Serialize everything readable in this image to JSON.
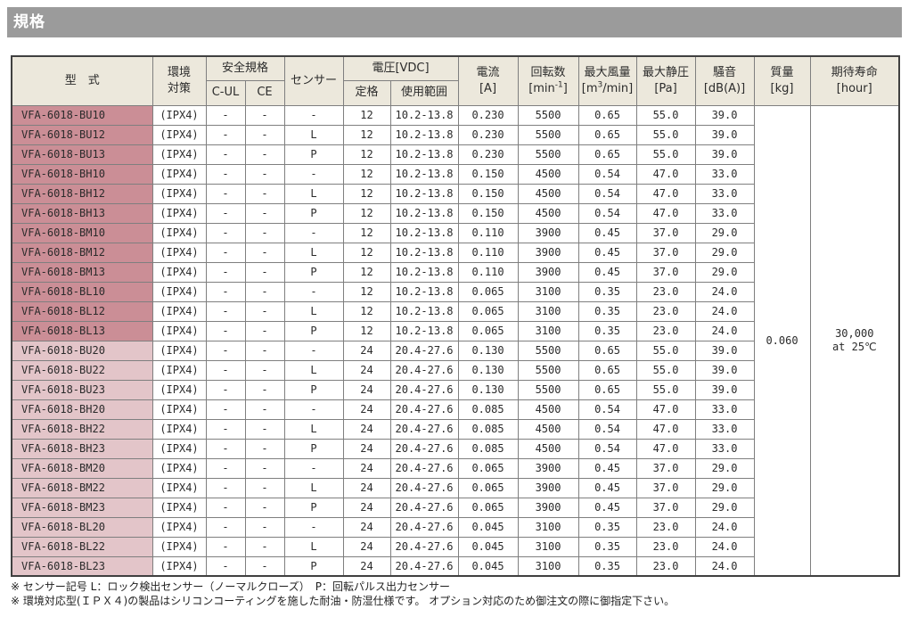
{
  "page_title": "規格",
  "colors": {
    "title_bar": "#9b9b9b",
    "header_bg": "#ece8dc",
    "row_shade_dark": "#cb8e96",
    "row_shade_light": "#e3c5c9"
  },
  "table": {
    "headers": {
      "model": "型　式",
      "env_l1": "環境",
      "env_l2": "対策",
      "safety": "安全規格",
      "cul": "C-UL",
      "ce": "CE",
      "sensor": "センサー",
      "voltage": "電圧[VDC]",
      "rated": "定格",
      "range": "使用範囲",
      "current_l1": "電流",
      "current_l2": "[A]",
      "speed_l1": "回転数",
      "speed_unit_pre": "[min",
      "speed_sup": "-1",
      "speed_unit_post": "]",
      "airflow_l1": "最大風量",
      "airflow_unit_pre": "[m",
      "airflow_sup": "3",
      "airflow_unit_post": "/min]",
      "pressure_l1": "最大静圧",
      "pressure_l2": "[Pa]",
      "noise_l1": "騒音",
      "noise_l2": "[dB(A)]",
      "mass_l1": "質量",
      "mass_l2": "[kg]",
      "life_l1": "期待寿命",
      "life_l2": "[hour]"
    },
    "mass_value": "0.060",
    "life_value_l1": "30,000",
    "life_value_l2": "at 25℃",
    "rows": [
      {
        "model": "VFA-6018-BU10",
        "env": "(IPX4)",
        "cul": "-",
        "ce": "-",
        "sensor": "-",
        "rated": "12",
        "range": "10.2-13.8",
        "current": "0.230",
        "speed": "5500",
        "airflow": "0.65",
        "pressure": "55.0",
        "noise": "39.0",
        "shade": "dark"
      },
      {
        "model": "VFA-6018-BU12",
        "env": "(IPX4)",
        "cul": "-",
        "ce": "-",
        "sensor": "L",
        "rated": "12",
        "range": "10.2-13.8",
        "current": "0.230",
        "speed": "5500",
        "airflow": "0.65",
        "pressure": "55.0",
        "noise": "39.0",
        "shade": "dark"
      },
      {
        "model": "VFA-6018-BU13",
        "env": "(IPX4)",
        "cul": "-",
        "ce": "-",
        "sensor": "P",
        "rated": "12",
        "range": "10.2-13.8",
        "current": "0.230",
        "speed": "5500",
        "airflow": "0.65",
        "pressure": "55.0",
        "noise": "39.0",
        "shade": "dark"
      },
      {
        "model": "VFA-6018-BH10",
        "env": "(IPX4)",
        "cul": "-",
        "ce": "-",
        "sensor": "-",
        "rated": "12",
        "range": "10.2-13.8",
        "current": "0.150",
        "speed": "4500",
        "airflow": "0.54",
        "pressure": "47.0",
        "noise": "33.0",
        "shade": "dark"
      },
      {
        "model": "VFA-6018-BH12",
        "env": "(IPX4)",
        "cul": "-",
        "ce": "-",
        "sensor": "L",
        "rated": "12",
        "range": "10.2-13.8",
        "current": "0.150",
        "speed": "4500",
        "airflow": "0.54",
        "pressure": "47.0",
        "noise": "33.0",
        "shade": "dark"
      },
      {
        "model": "VFA-6018-BH13",
        "env": "(IPX4)",
        "cul": "-",
        "ce": "-",
        "sensor": "P",
        "rated": "12",
        "range": "10.2-13.8",
        "current": "0.150",
        "speed": "4500",
        "airflow": "0.54",
        "pressure": "47.0",
        "noise": "33.0",
        "shade": "dark"
      },
      {
        "model": "VFA-6018-BM10",
        "env": "(IPX4)",
        "cul": "-",
        "ce": "-",
        "sensor": "-",
        "rated": "12",
        "range": "10.2-13.8",
        "current": "0.110",
        "speed": "3900",
        "airflow": "0.45",
        "pressure": "37.0",
        "noise": "29.0",
        "shade": "dark"
      },
      {
        "model": "VFA-6018-BM12",
        "env": "(IPX4)",
        "cul": "-",
        "ce": "-",
        "sensor": "L",
        "rated": "12",
        "range": "10.2-13.8",
        "current": "0.110",
        "speed": "3900",
        "airflow": "0.45",
        "pressure": "37.0",
        "noise": "29.0",
        "shade": "dark"
      },
      {
        "model": "VFA-6018-BM13",
        "env": "(IPX4)",
        "cul": "-",
        "ce": "-",
        "sensor": "P",
        "rated": "12",
        "range": "10.2-13.8",
        "current": "0.110",
        "speed": "3900",
        "airflow": "0.45",
        "pressure": "37.0",
        "noise": "29.0",
        "shade": "dark"
      },
      {
        "model": "VFA-6018-BL10",
        "env": "(IPX4)",
        "cul": "-",
        "ce": "-",
        "sensor": "-",
        "rated": "12",
        "range": "10.2-13.8",
        "current": "0.065",
        "speed": "3100",
        "airflow": "0.35",
        "pressure": "23.0",
        "noise": "24.0",
        "shade": "dark"
      },
      {
        "model": "VFA-6018-BL12",
        "env": "(IPX4)",
        "cul": "-",
        "ce": "-",
        "sensor": "L",
        "rated": "12",
        "range": "10.2-13.8",
        "current": "0.065",
        "speed": "3100",
        "airflow": "0.35",
        "pressure": "23.0",
        "noise": "24.0",
        "shade": "dark"
      },
      {
        "model": "VFA-6018-BL13",
        "env": "(IPX4)",
        "cul": "-",
        "ce": "-",
        "sensor": "P",
        "rated": "12",
        "range": "10.2-13.8",
        "current": "0.065",
        "speed": "3100",
        "airflow": "0.35",
        "pressure": "23.0",
        "noise": "24.0",
        "shade": "dark"
      },
      {
        "model": "VFA-6018-BU20",
        "env": "(IPX4)",
        "cul": "-",
        "ce": "-",
        "sensor": "-",
        "rated": "24",
        "range": "20.4-27.6",
        "current": "0.130",
        "speed": "5500",
        "airflow": "0.65",
        "pressure": "55.0",
        "noise": "39.0",
        "shade": "light"
      },
      {
        "model": "VFA-6018-BU22",
        "env": "(IPX4)",
        "cul": "-",
        "ce": "-",
        "sensor": "L",
        "rated": "24",
        "range": "20.4-27.6",
        "current": "0.130",
        "speed": "5500",
        "airflow": "0.65",
        "pressure": "55.0",
        "noise": "39.0",
        "shade": "light"
      },
      {
        "model": "VFA-6018-BU23",
        "env": "(IPX4)",
        "cul": "-",
        "ce": "-",
        "sensor": "P",
        "rated": "24",
        "range": "20.4-27.6",
        "current": "0.130",
        "speed": "5500",
        "airflow": "0.65",
        "pressure": "55.0",
        "noise": "39.0",
        "shade": "light"
      },
      {
        "model": "VFA-6018-BH20",
        "env": "(IPX4)",
        "cul": "-",
        "ce": "-",
        "sensor": "-",
        "rated": "24",
        "range": "20.4-27.6",
        "current": "0.085",
        "speed": "4500",
        "airflow": "0.54",
        "pressure": "47.0",
        "noise": "33.0",
        "shade": "light"
      },
      {
        "model": "VFA-6018-BH22",
        "env": "(IPX4)",
        "cul": "-",
        "ce": "-",
        "sensor": "L",
        "rated": "24",
        "range": "20.4-27.6",
        "current": "0.085",
        "speed": "4500",
        "airflow": "0.54",
        "pressure": "47.0",
        "noise": "33.0",
        "shade": "light"
      },
      {
        "model": "VFA-6018-BH23",
        "env": "(IPX4)",
        "cul": "-",
        "ce": "-",
        "sensor": "P",
        "rated": "24",
        "range": "20.4-27.6",
        "current": "0.085",
        "speed": "4500",
        "airflow": "0.54",
        "pressure": "47.0",
        "noise": "33.0",
        "shade": "light"
      },
      {
        "model": "VFA-6018-BM20",
        "env": "(IPX4)",
        "cul": "-",
        "ce": "-",
        "sensor": "-",
        "rated": "24",
        "range": "20.4-27.6",
        "current": "0.065",
        "speed": "3900",
        "airflow": "0.45",
        "pressure": "37.0",
        "noise": "29.0",
        "shade": "light"
      },
      {
        "model": "VFA-6018-BM22",
        "env": "(IPX4)",
        "cul": "-",
        "ce": "-",
        "sensor": "L",
        "rated": "24",
        "range": "20.4-27.6",
        "current": "0.065",
        "speed": "3900",
        "airflow": "0.45",
        "pressure": "37.0",
        "noise": "29.0",
        "shade": "light"
      },
      {
        "model": "VFA-6018-BM23",
        "env": "(IPX4)",
        "cul": "-",
        "ce": "-",
        "sensor": "P",
        "rated": "24",
        "range": "20.4-27.6",
        "current": "0.065",
        "speed": "3900",
        "airflow": "0.45",
        "pressure": "37.0",
        "noise": "29.0",
        "shade": "light"
      },
      {
        "model": "VFA-6018-BL20",
        "env": "(IPX4)",
        "cul": "-",
        "ce": "-",
        "sensor": "-",
        "rated": "24",
        "range": "20.4-27.6",
        "current": "0.045",
        "speed": "3100",
        "airflow": "0.35",
        "pressure": "23.0",
        "noise": "24.0",
        "shade": "light"
      },
      {
        "model": "VFA-6018-BL22",
        "env": "(IPX4)",
        "cul": "-",
        "ce": "-",
        "sensor": "L",
        "rated": "24",
        "range": "20.4-27.6",
        "current": "0.045",
        "speed": "3100",
        "airflow": "0.35",
        "pressure": "23.0",
        "noise": "24.0",
        "shade": "light"
      },
      {
        "model": "VFA-6018-BL23",
        "env": "(IPX4)",
        "cul": "-",
        "ce": "-",
        "sensor": "P",
        "rated": "24",
        "range": "20.4-27.6",
        "current": "0.045",
        "speed": "3100",
        "airflow": "0.35",
        "pressure": "23.0",
        "noise": "24.0",
        "shade": "light"
      }
    ]
  },
  "footnotes": [
    "※ センサー記号  L：ロック検出センサー（ノーマルクローズ）　P：回転パルス出力センサー",
    "※ 環境対応型(ＩＰＸ４)の製品はシリコンコーティングを施した耐油・防湿仕様です。 オプション対応のため御注文の際に御指定下さい。"
  ]
}
